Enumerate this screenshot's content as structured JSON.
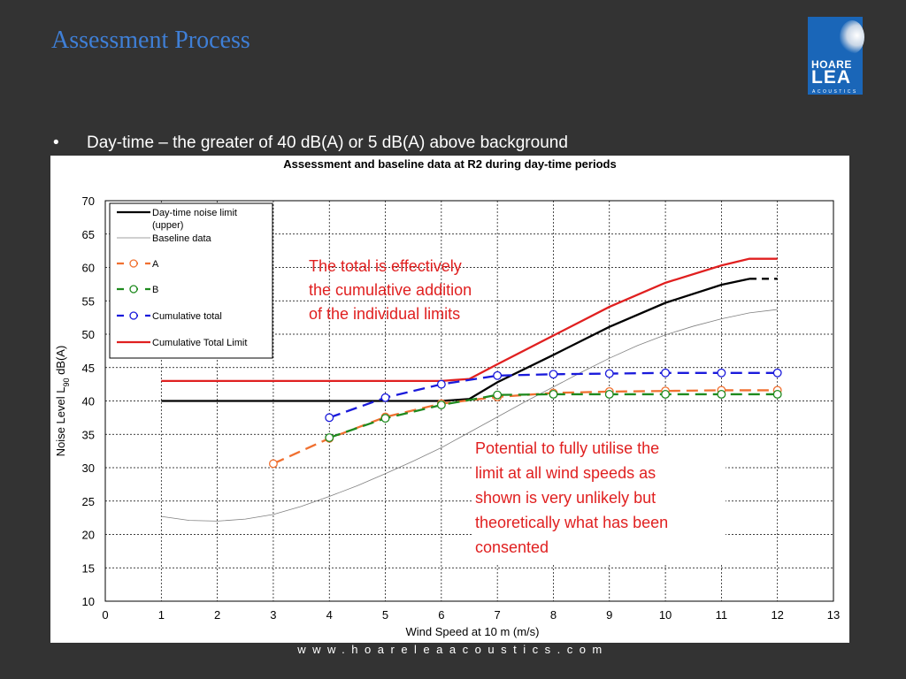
{
  "slide": {
    "title": "Assessment Process",
    "bullet_marker": "•",
    "bullet_text": "Day-time – the greater of 40 dB(A) or 5 dB(A) above background",
    "footer": "www.hoareleaacoustics.com"
  },
  "logo": {
    "line1": "HOARE",
    "line2": "LEA",
    "line3": "ACOUSTICS",
    "color": "#1a66b8"
  },
  "chart_data": {
    "type": "line",
    "title": "Assessment and baseline data at R2 during day-time periods",
    "xlabel": "Wind Speed at 10 m (m/s)",
    "ylabel": "Noise Level L90 dB(A)",
    "xlim": [
      0,
      13
    ],
    "ylim": [
      10,
      70
    ],
    "xticks": [
      0,
      1,
      2,
      3,
      4,
      5,
      6,
      7,
      8,
      9,
      10,
      11,
      12,
      13
    ],
    "yticks": [
      10,
      15,
      20,
      25,
      30,
      35,
      40,
      45,
      50,
      55,
      60,
      65,
      70
    ],
    "grid": true,
    "legend_position": "top-left",
    "series": [
      {
        "name": "Day-time noise limit (upper)",
        "color": "#000000",
        "style": "solid",
        "marker": "none",
        "x": [
          1,
          2,
          3,
          4,
          5,
          6,
          6.5,
          7,
          8,
          9,
          10,
          11,
          11.5
        ],
        "y": [
          40,
          40,
          40,
          40,
          40,
          40,
          40.3,
          42.8,
          46.9,
          51.1,
          54.7,
          57.4,
          58.3
        ],
        "extension_x": [
          11.5,
          12
        ],
        "extension_y": [
          58.3,
          58.3
        ]
      },
      {
        "name": "Baseline data",
        "color": "#808080",
        "style": "thin",
        "marker": "none",
        "x": [
          1,
          1.5,
          2,
          2.5,
          3,
          3.5,
          4,
          4.5,
          5,
          5.5,
          6,
          6.5,
          7,
          7.5,
          8,
          8.5,
          9,
          9.5,
          10,
          10.5,
          11,
          11.5,
          12
        ],
        "y": [
          22.7,
          22.1,
          22.0,
          22.3,
          23.0,
          24.2,
          25.7,
          27.3,
          29.1,
          31.0,
          33.0,
          35.3,
          37.6,
          39.9,
          42.1,
          44.3,
          46.4,
          48.3,
          49.9,
          51.2,
          52.3,
          53.2,
          53.7
        ]
      },
      {
        "name": "A",
        "color": "#f07030",
        "style": "dashed",
        "marker": "circle",
        "x": [
          3,
          4,
          5,
          6,
          7,
          8,
          9,
          10,
          11,
          12
        ],
        "y": [
          30.6,
          34.4,
          37.6,
          39.6,
          40.6,
          41.2,
          41.4,
          41.5,
          41.6,
          41.6
        ]
      },
      {
        "name": "B",
        "color": "#1e8a1e",
        "style": "dashed",
        "marker": "circle",
        "x": [
          4,
          5,
          6,
          7,
          8,
          9,
          10,
          11,
          12
        ],
        "y": [
          34.5,
          37.4,
          39.4,
          40.9,
          41.0,
          41.0,
          41.0,
          41.0,
          41.0
        ]
      },
      {
        "name": "Cumulative total",
        "color": "#1a1adb",
        "style": "dashed",
        "marker": "circle",
        "x": [
          4,
          5,
          6,
          7,
          8,
          9,
          10,
          11,
          12
        ],
        "y": [
          37.5,
          40.5,
          42.5,
          43.8,
          44.0,
          44.1,
          44.2,
          44.2,
          44.2
        ]
      },
      {
        "name": "Cumulative Total Limit",
        "color": "#e02020",
        "style": "solid",
        "marker": "none",
        "x": [
          1,
          2,
          3,
          4,
          5,
          6,
          6.5,
          7,
          8,
          9,
          10,
          11,
          11.5,
          12
        ],
        "y": [
          43,
          43,
          43,
          43,
          43,
          43,
          43.3,
          45.5,
          49.8,
          54.1,
          57.7,
          60.3,
          61.3,
          61.3
        ]
      }
    ],
    "legend": [
      {
        "line1": "Day-time noise limit",
        "line2": "(upper)"
      },
      {
        "line1": "Baseline data"
      },
      {
        "line1": "A"
      },
      {
        "line1": "B"
      },
      {
        "line1": "Cumulative total"
      },
      {
        "line1": "Cumulative Total Limit"
      }
    ],
    "annotations": [
      {
        "lines": [
          "The total is effectively",
          "the cumulative addition",
          "of the individual limits"
        ],
        "color": "#e02020"
      },
      {
        "lines": [
          "Potential to fully utilise the",
          "limit at all wind speeds as",
          "shown is very unlikely but",
          "theoretically what has been",
          "consented"
        ],
        "color": "#e02020"
      }
    ]
  }
}
